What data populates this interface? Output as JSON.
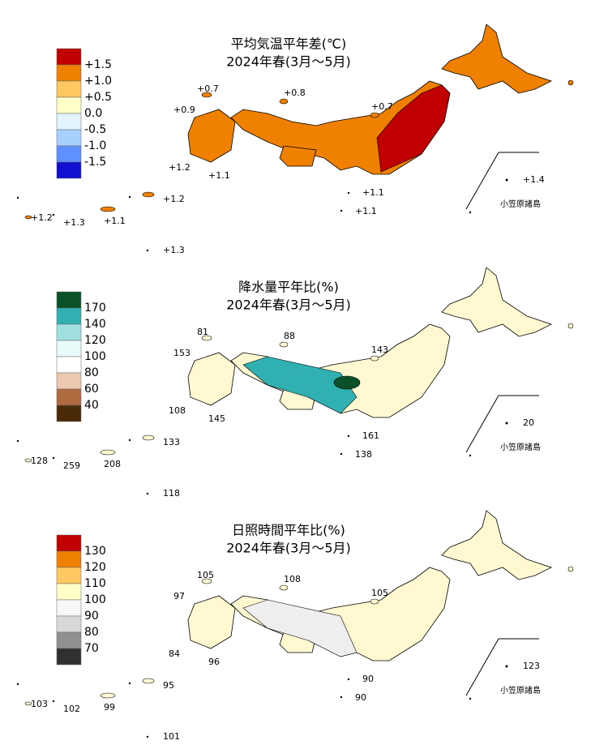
{
  "panels": [
    {
      "title": "平均気温平年差(℃)",
      "subtitle": "2024年春(3月～5月)",
      "legend": [
        {
          "label": "+1.5",
          "color": "#c00000"
        },
        {
          "label": "+1.0",
          "color": "#f08000"
        },
        {
          "label": "+0.5",
          "color": "#ffc860"
        },
        {
          "label": "0.0",
          "color": "#ffffc8"
        },
        {
          "label": "-0.5",
          "color": "#e4f4ff"
        },
        {
          "label": "-1.0",
          "color": "#a8d0ff"
        },
        {
          "label": "-1.5",
          "color": "#6090ff"
        },
        {
          "color": "#1010d0"
        }
      ],
      "stations": [
        "+0.7",
        "+0.8",
        "+0.9",
        "+0.7",
        "+1.2",
        "+1.1",
        "+1.4",
        "+1.1",
        "+1.2",
        "+1.2",
        "+1.3",
        "+1.1",
        "+1.1",
        "+1.3"
      ],
      "islands": "小笠原諸島"
    },
    {
      "title": "降水量平年比(%)",
      "subtitle": "2024年春(3月～5月)",
      "legend": [
        {
          "label": "170",
          "color": "#0a5028"
        },
        {
          "label": "140",
          "color": "#30b0b0"
        },
        {
          "label": "120",
          "color": "#a0e0e0"
        },
        {
          "label": "100",
          "color": "#e8fafa"
        },
        {
          "label": "80",
          "color": "#ffffff"
        },
        {
          "label": "60",
          "color": "#ecc8b0"
        },
        {
          "label": "40",
          "color": "#b06a40"
        },
        {
          "color": "#4a2a08"
        }
      ],
      "stations": [
        "81",
        "88",
        "153",
        "143",
        "108",
        "145",
        "20",
        "161",
        "133",
        "128",
        "259",
        "208",
        "138",
        "118"
      ],
      "islands": "小笠原諸島"
    },
    {
      "title": "日照時間平年比(%)",
      "subtitle": "2024年春(3月～5月)",
      "legend": [
        {
          "label": "130",
          "color": "#c00000"
        },
        {
          "label": "120",
          "color": "#f08000"
        },
        {
          "label": "110",
          "color": "#ffc860"
        },
        {
          "label": "100",
          "color": "#ffffc8"
        },
        {
          "label": "90",
          "color": "#f8f8f8"
        },
        {
          "label": "80",
          "color": "#d8d8d8"
        },
        {
          "label": "70",
          "color": "#909090"
        },
        {
          "color": "#303030"
        }
      ],
      "stations": [
        "105",
        "108",
        "97",
        "105",
        "84",
        "96",
        "123",
        "90",
        "95",
        "103",
        "102",
        "99",
        "90",
        "101"
      ],
      "islands": "小笠原諸島"
    }
  ]
}
